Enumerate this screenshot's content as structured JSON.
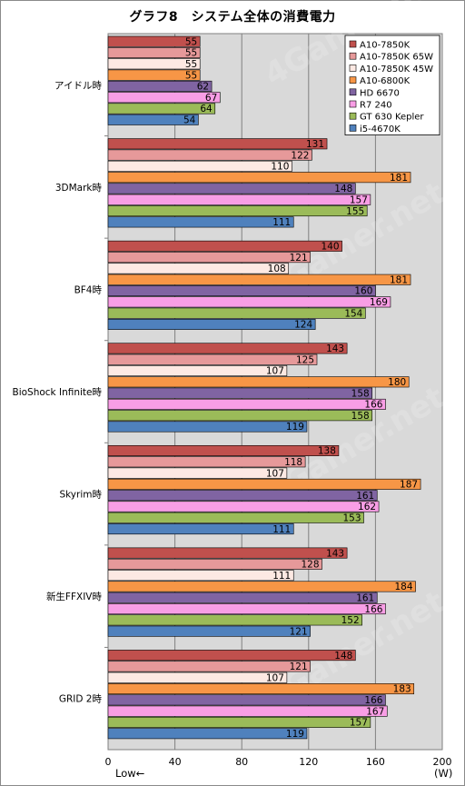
{
  "chart_data": {
    "type": "bar",
    "orientation": "horizontal",
    "title": "グラフ8　システム全体の消費電力",
    "categories": [
      "アイドル時",
      "3DMark時",
      "BF4時",
      "BioShock Infinite時",
      "Skyrim時",
      "新生FFXIV時",
      "GRID 2時"
    ],
    "series": [
      {
        "name": "A10-7850K",
        "color": "#c0504d",
        "values": [
          55,
          131,
          140,
          143,
          138,
          143,
          148
        ]
      },
      {
        "name": "A10-7850K 65W",
        "color": "#e6999a",
        "values": [
          55,
          122,
          121,
          125,
          118,
          128,
          121
        ]
      },
      {
        "name": "A10-7850K 45W",
        "color": "#fde9e3",
        "values": [
          55,
          110,
          108,
          107,
          107,
          111,
          107
        ]
      },
      {
        "name": "A10-6800K",
        "color": "#f79646",
        "values": [
          55,
          181,
          181,
          180,
          187,
          184,
          183
        ]
      },
      {
        "name": "HD 6670",
        "color": "#8064a2",
        "values": [
          62,
          148,
          160,
          158,
          161,
          161,
          166
        ]
      },
      {
        "name": "R7 240",
        "color": "#f89ee5",
        "values": [
          67,
          157,
          169,
          166,
          162,
          166,
          167
        ]
      },
      {
        "name": "GT 630 Kepler",
        "color": "#9bbb59",
        "values": [
          64,
          155,
          154,
          158,
          153,
          152,
          157
        ]
      },
      {
        "name": "i5-4670K",
        "color": "#4f81bd",
        "values": [
          54,
          111,
          124,
          119,
          111,
          121,
          119
        ]
      }
    ],
    "xlim": [
      0,
      200
    ],
    "xticks": [
      0,
      40,
      80,
      120,
      160,
      200
    ],
    "xlabel": "(W)",
    "low_label": "Low←",
    "grid": true,
    "legend_position": "top-right",
    "plot_background": "#d9d9d9",
    "watermark": "4Gamer.net"
  }
}
